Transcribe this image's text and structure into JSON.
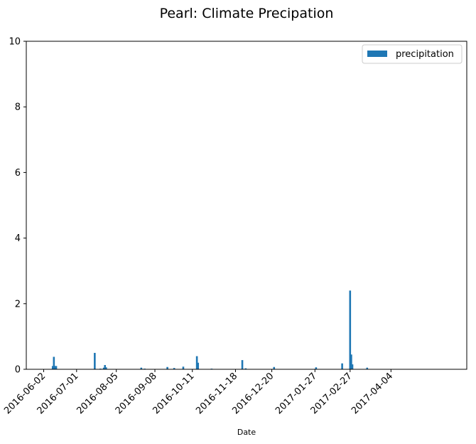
{
  "chart_data": {
    "type": "bar",
    "title": "Pearl: Climate Precipation",
    "xlabel": "Date",
    "ylabel": "",
    "ylim": [
      0,
      10
    ],
    "y_ticks": [
      0,
      2,
      4,
      6,
      8,
      10
    ],
    "x_ticks": [
      "2016-06-02",
      "2016-07-01",
      "2016-08-05",
      "2016-09-08",
      "2016-10-11",
      "2016-11-18",
      "2016-12-20",
      "2017-01-27",
      "2017-02-27",
      "2017-04-04"
    ],
    "grid": false,
    "legend": {
      "position": "top-right",
      "entries": [
        "precipitation"
      ]
    },
    "bar_color": "#1f77b4",
    "series": [
      {
        "name": "precipitation",
        "points": [
          {
            "x": "2016-06-10",
            "y": 0.1
          },
          {
            "x": "2016-06-11",
            "y": 0.38
          },
          {
            "x": "2016-06-12",
            "y": 0.1
          },
          {
            "x": "2016-06-13",
            "y": 0.1
          },
          {
            "x": "2016-07-17",
            "y": 0.5
          },
          {
            "x": "2016-07-22",
            "y": 0.02
          },
          {
            "x": "2016-07-25",
            "y": 0.05
          },
          {
            "x": "2016-07-26",
            "y": 0.13
          },
          {
            "x": "2016-07-27",
            "y": 0.06
          },
          {
            "x": "2016-08-27",
            "y": 0.05
          },
          {
            "x": "2016-08-30",
            "y": 0.02
          },
          {
            "x": "2016-09-19",
            "y": 0.07
          },
          {
            "x": "2016-09-25",
            "y": 0.04
          },
          {
            "x": "2016-10-03",
            "y": 0.08
          },
          {
            "x": "2016-10-15",
            "y": 0.4
          },
          {
            "x": "2016-10-16",
            "y": 0.2
          },
          {
            "x": "2016-10-28",
            "y": 0.02
          },
          {
            "x": "2016-11-24",
            "y": 0.28
          },
          {
            "x": "2016-11-27",
            "y": 0.03
          },
          {
            "x": "2016-12-22",
            "y": 0.07
          },
          {
            "x": "2017-01-28",
            "y": 0.06
          },
          {
            "x": "2017-02-20",
            "y": 0.18
          },
          {
            "x": "2017-02-27",
            "y": 2.4
          },
          {
            "x": "2017-02-28",
            "y": 0.45
          },
          {
            "x": "2017-03-01",
            "y": 0.15
          },
          {
            "x": "2017-03-14",
            "y": 0.05
          }
        ]
      }
    ]
  }
}
